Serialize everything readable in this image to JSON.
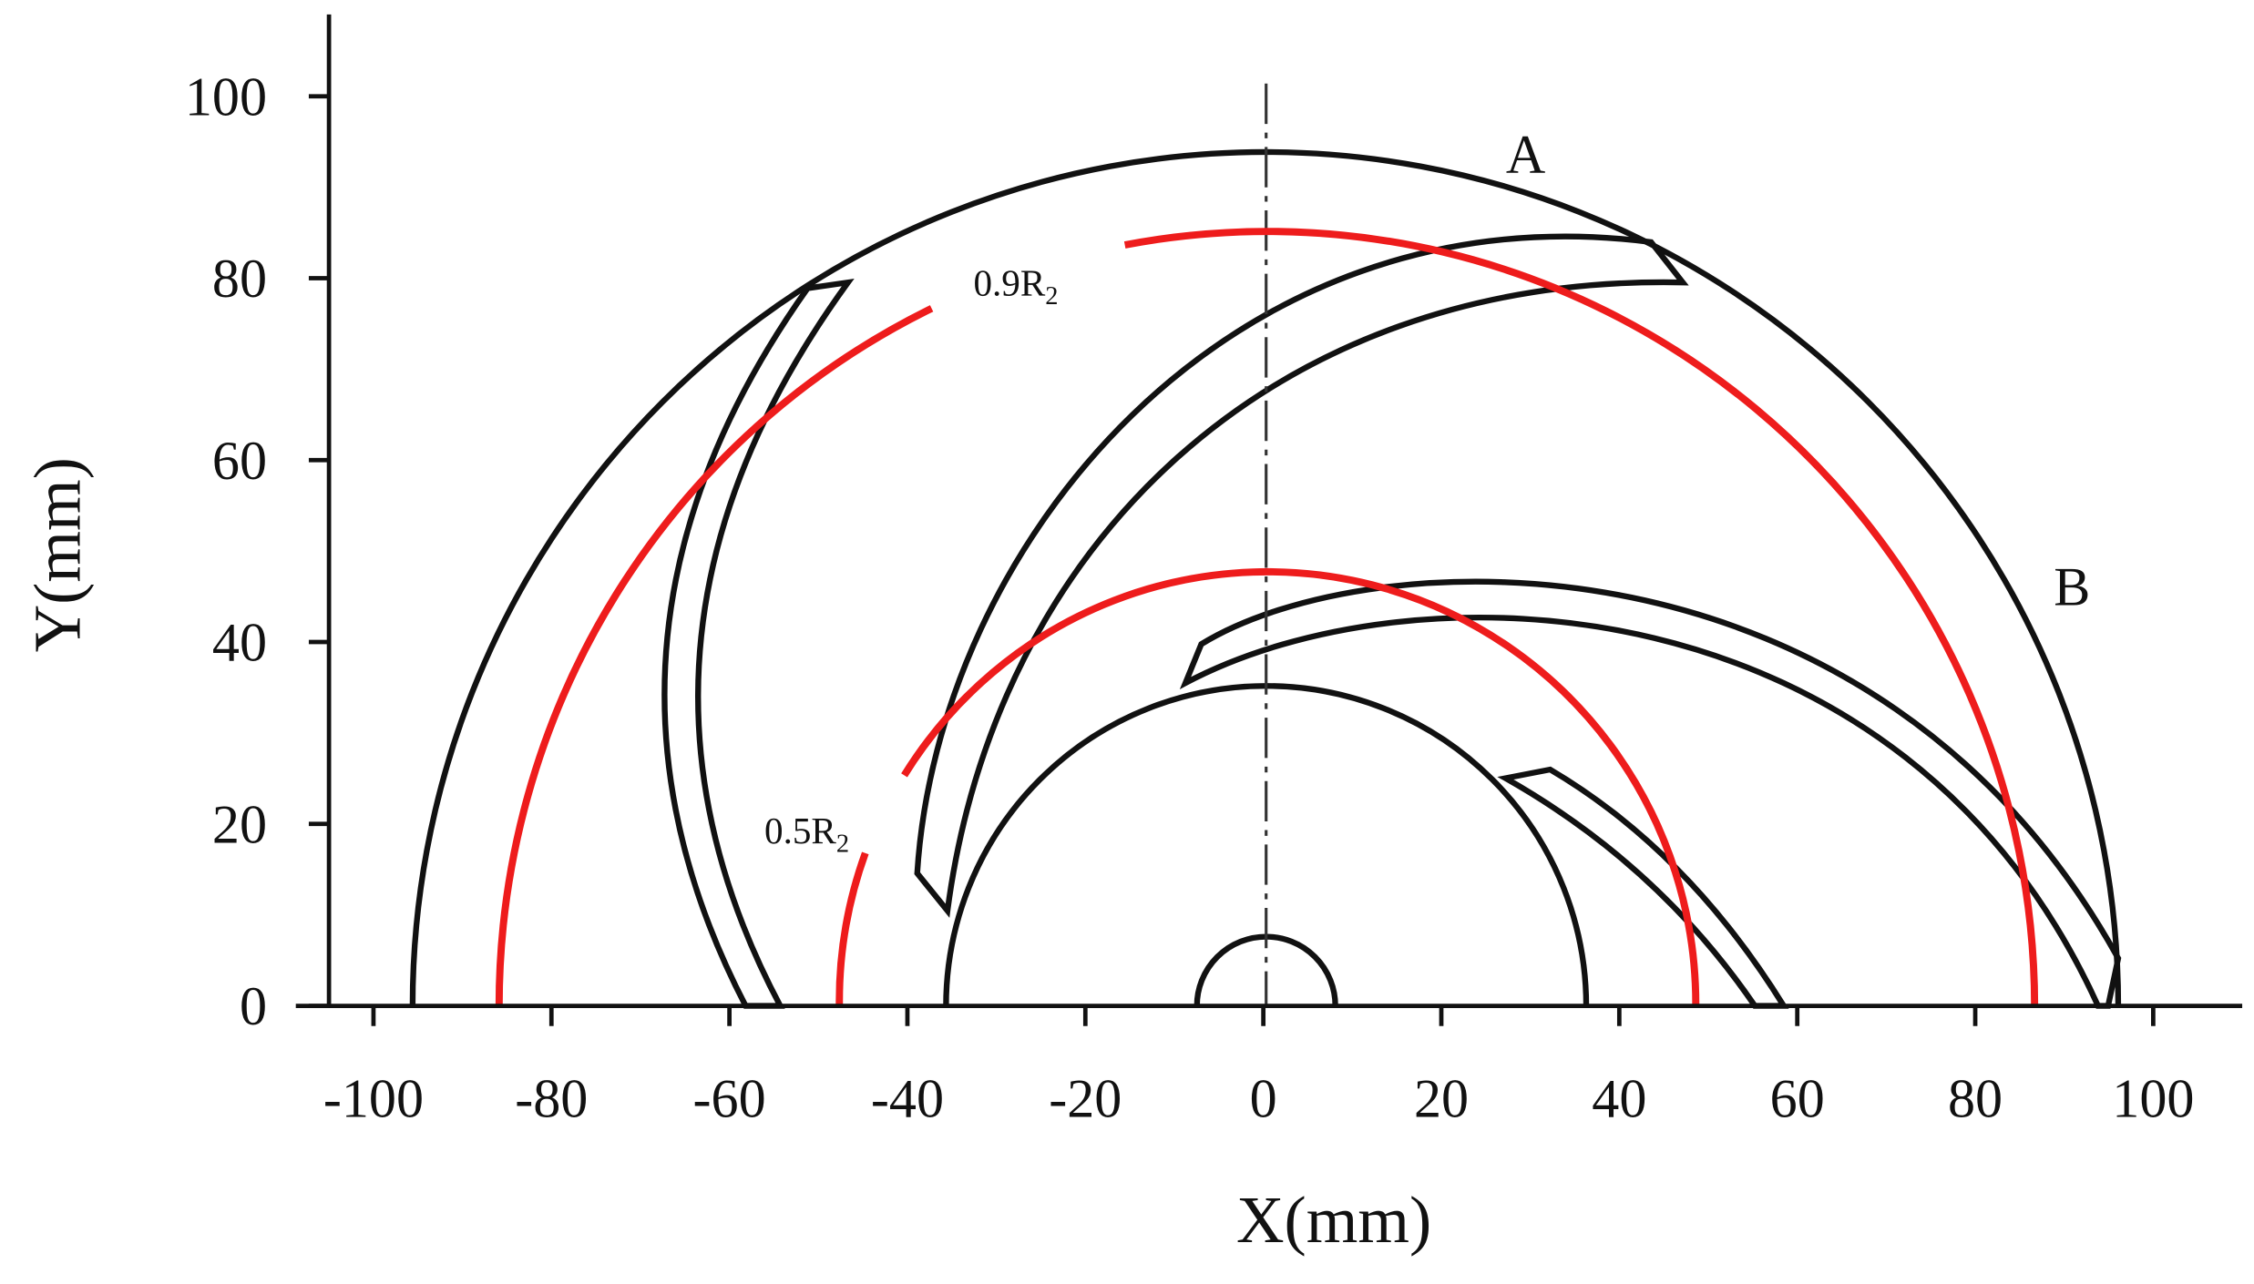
{
  "chart_data": {
    "type": "diagram",
    "x_label": "X(mm)",
    "y_label": "Y(mm)",
    "xlim": [
      -105,
      110
    ],
    "ylim": [
      0,
      109
    ],
    "xticks": [
      -100,
      -80,
      -60,
      -40,
      -20,
      0,
      20,
      40,
      60,
      80,
      100
    ],
    "yticks": [
      0,
      20,
      40,
      60,
      80,
      100
    ],
    "annotations": [
      {
        "text": "A"
      },
      {
        "text": "B"
      },
      {
        "text": "0.9R",
        "subscript": "2"
      },
      {
        "text": "0.5R",
        "subscript": "2"
      }
    ]
  }
}
